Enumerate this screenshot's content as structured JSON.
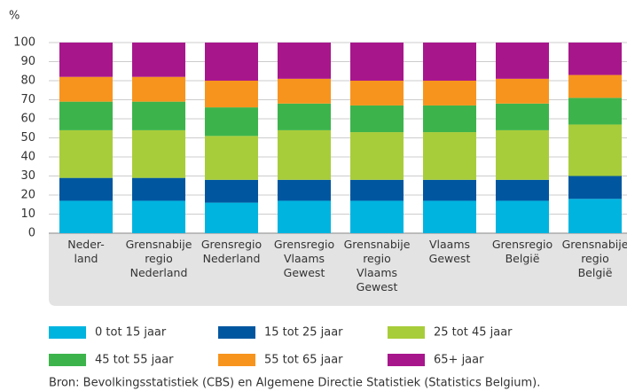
{
  "chart_data": {
    "type": "stacked_bar",
    "y_label": "%",
    "categories": [
      "Neder-\nland",
      "Grensnabije\nregio\nNederland",
      "Grensregio\nNederland",
      "Grensregio\nVlaams\nGewest",
      "Grensnabije\nregio\nVlaams\nGewest",
      "Vlaams\nGewest",
      "Grensregio\nBelgië",
      "Grensnabije\nregio\nBelgië"
    ],
    "series": [
      {
        "name": "0 tot 15 jaar",
        "color": "#00b4e0",
        "values": [
          17,
          17,
          16,
          17,
          17,
          17,
          17,
          18
        ]
      },
      {
        "name": "15 tot 25 jaar",
        "color": "#0057a0",
        "values": [
          12,
          12,
          12,
          11,
          11,
          11,
          11,
          12
        ]
      },
      {
        "name": "25 tot 45 jaar",
        "color": "#a8cd3a",
        "values": [
          25,
          25,
          23,
          26,
          25,
          25,
          26,
          27
        ]
      },
      {
        "name": "45 tot 55 jaar",
        "color": "#3cb44b",
        "values": [
          15,
          15,
          15,
          14,
          14,
          14,
          14,
          14
        ]
      },
      {
        "name": "55 tot 65 jaar",
        "color": "#f7941d",
        "values": [
          13,
          13,
          14,
          13,
          13,
          13,
          13,
          12
        ]
      },
      {
        "name": "65+ jaar",
        "color": "#a8168c",
        "values": [
          18,
          18,
          20,
          19,
          20,
          20,
          19,
          17
        ]
      }
    ],
    "ylim": [
      0,
      100
    ],
    "yticks": [
      0,
      10,
      20,
      30,
      40,
      50,
      60,
      70,
      80,
      90,
      100
    ],
    "grid": true,
    "source": "Bron: Bevolkingsstatistiek (CBS) en Algemene Directie Statistiek (Statistics Belgium)."
  }
}
